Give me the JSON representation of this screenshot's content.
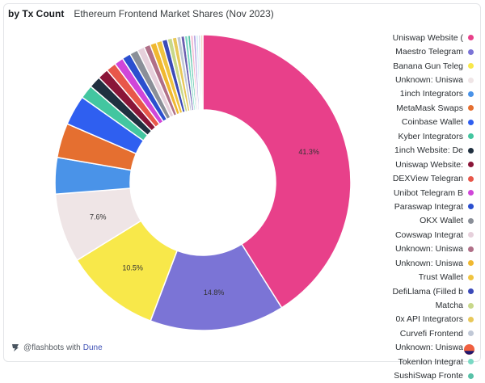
{
  "header": {
    "query_name": "by Tx Count",
    "chart_title": "Ethereum Frontend Market Shares (Nov 2023)"
  },
  "footer": {
    "author": "@flashbots with",
    "brand": "Dune"
  },
  "chart_data": {
    "type": "pie",
    "title": "Ethereum Frontend Market Shares (Nov 2023)",
    "donut": true,
    "legend_position": "right",
    "slices": [
      {
        "label": "Uniswap Website (",
        "value": 41.3,
        "color": "#e8408a",
        "display": "41.3%"
      },
      {
        "label": "Maestro Telegram",
        "value": 14.8,
        "color": "#7b74d6",
        "display": "14.8%"
      },
      {
        "label": "Banana Gun Teleg",
        "value": 10.5,
        "color": "#f8e84a",
        "display": "10.5%"
      },
      {
        "label": "Unknown: Uniswa",
        "value": 7.6,
        "color": "#efe5e6",
        "display": "7.6%"
      },
      {
        "label": "1inch Integrators",
        "value": 4.0,
        "color": "#4a93e8",
        "display": ""
      },
      {
        "label": "MetaMask Swaps",
        "value": 3.8,
        "color": "#e56f30",
        "display": ""
      },
      {
        "label": "Coinbase Wallet",
        "value": 3.3,
        "color": "#2f5ff0",
        "display": ""
      },
      {
        "label": "Kyber Integrators",
        "value": 1.5,
        "color": "#43c6a0",
        "display": ""
      },
      {
        "label": "1inch Website: De",
        "value": 1.3,
        "color": "#203040",
        "display": ""
      },
      {
        "label": "Uniswap Website:",
        "value": 1.2,
        "color": "#8a1538",
        "display": ""
      },
      {
        "label": "DEXView Telegran",
        "value": 1.1,
        "color": "#e8574a",
        "display": ""
      },
      {
        "label": "Unibot Telegram B",
        "value": 1.0,
        "color": "#d046d9",
        "display": ""
      },
      {
        "label": "Paraswap Integrat",
        "value": 0.95,
        "color": "#2b4fcf",
        "display": ""
      },
      {
        "label": "OKX Wallet",
        "value": 0.9,
        "color": "#8a8f98",
        "display": ""
      },
      {
        "label": "Cowswap Integrat",
        "value": 0.8,
        "color": "#e6d0db",
        "display": ""
      },
      {
        "label": "Unknown: Uniswa",
        "value": 0.7,
        "color": "#b07088",
        "display": ""
      },
      {
        "label": "Unknown: Uniswa",
        "value": 0.7,
        "color": "#f0b830",
        "display": ""
      },
      {
        "label": "Trust Wallet",
        "value": 0.65,
        "color": "#f0c440",
        "display": ""
      },
      {
        "label": "DefiLlama (Filled b",
        "value": 0.6,
        "color": "#3b4ab8",
        "display": ""
      },
      {
        "label": "Matcha",
        "value": 0.55,
        "color": "#c8d88a",
        "display": ""
      },
      {
        "label": "0x API Integrators",
        "value": 0.5,
        "color": "#e8c85a",
        "display": ""
      },
      {
        "label": "Curvefi Frontend",
        "value": 0.45,
        "color": "#c0c8d6",
        "display": ""
      },
      {
        "label": "Unknown: Uniswa",
        "value": 0.4,
        "color": "#6b5fb0",
        "display": ""
      },
      {
        "label": "Tokenlon Integrat",
        "value": 0.35,
        "color": "#7ad9c4",
        "display": ""
      },
      {
        "label": "SushiSwap Fronte",
        "value": 0.3,
        "color": "#58c2a8",
        "display": ""
      },
      {
        "label": "",
        "value": 0.3,
        "color": "#f3b7cf",
        "display": ""
      },
      {
        "label": "",
        "value": 0.3,
        "color": "#b6a7e3",
        "display": ""
      },
      {
        "label": "",
        "value": 0.25,
        "color": "#c8e8f4",
        "display": ""
      },
      {
        "label": "",
        "value": 0.25,
        "color": "#d9d2e9",
        "display": ""
      },
      {
        "label": "",
        "value": 0.25,
        "color": "#f5d6c6",
        "display": ""
      }
    ]
  }
}
